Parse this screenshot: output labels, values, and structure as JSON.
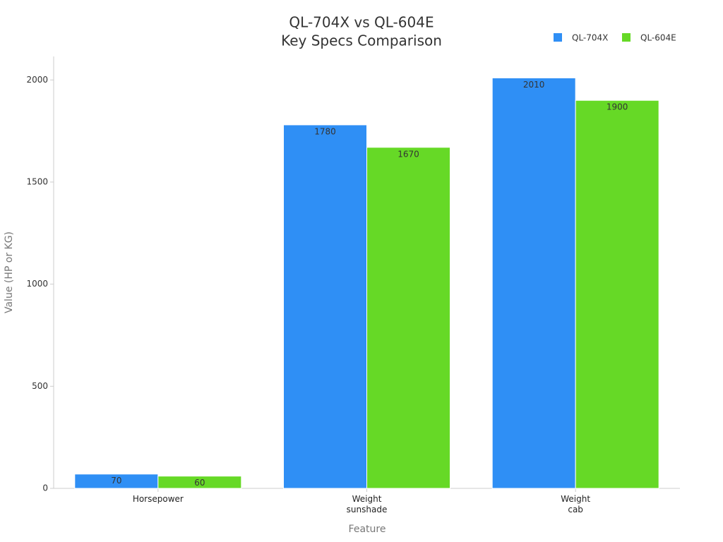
{
  "chart_data": {
    "type": "bar",
    "title": "QL-704X vs QL-604E",
    "subtitle": "Key Specs Comparison",
    "x_label": "Feature",
    "y_label": "Value (HP or KG)",
    "categories": [
      "Horsepower",
      "Weight\nsunshade",
      "Weight\ncab"
    ],
    "series": [
      {
        "name": "QL-704X",
        "color": "#2f8ff5",
        "values": [
          70,
          1780,
          2010
        ]
      },
      {
        "name": "QL-604E",
        "color": "#66d926",
        "values": [
          60,
          1670,
          1900
        ]
      }
    ],
    "ylim": [
      0,
      2115
    ],
    "yticks": [
      0,
      500,
      1000,
      1500,
      2000
    ],
    "grid": false,
    "legend": "top-right"
  }
}
